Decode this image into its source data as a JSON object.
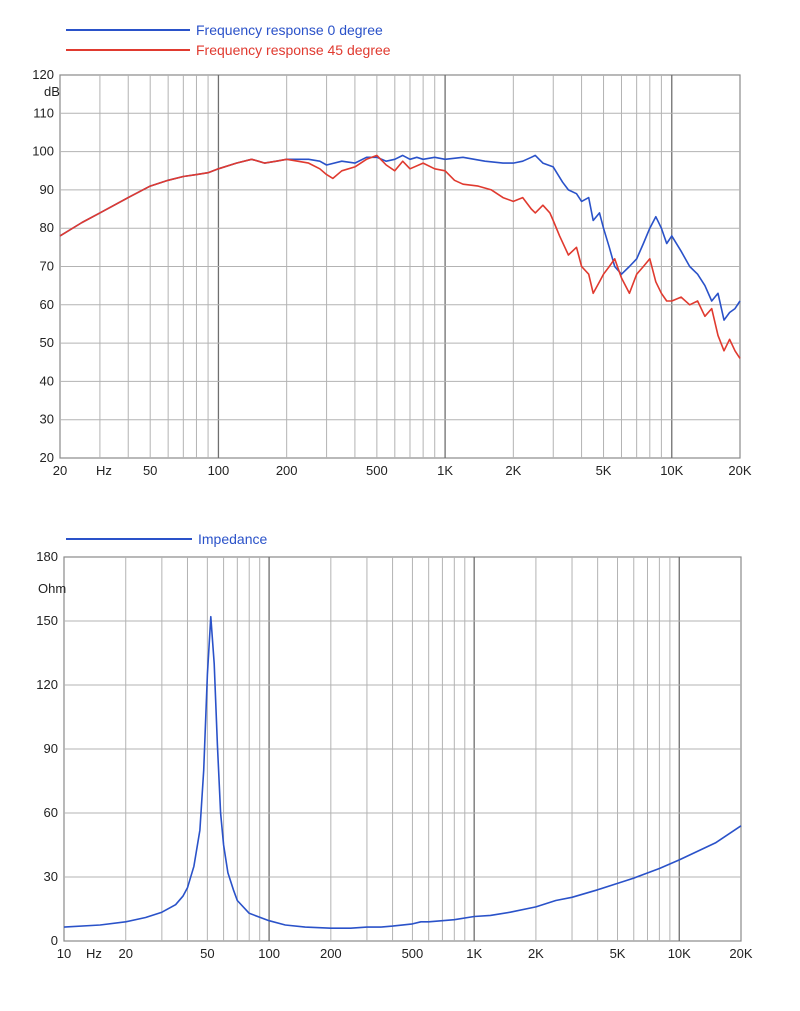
{
  "chart_data": [
    {
      "type": "line",
      "x_scale": "log",
      "xlim": [
        20,
        20000
      ],
      "ylim": [
        20,
        120
      ],
      "ylabel": "dB",
      "xlabel": "Hz",
      "grid": true,
      "legend_position": "top-left",
      "y_ticks": [
        20,
        30,
        40,
        50,
        60,
        70,
        80,
        90,
        100,
        110,
        120
      ],
      "x_tick_labels": [
        {
          "value": 20,
          "label": "20"
        },
        {
          "value": 50,
          "label": "50"
        },
        {
          "value": 100,
          "label": "100"
        },
        {
          "value": 200,
          "label": "200"
        },
        {
          "value": 500,
          "label": "500"
        },
        {
          "value": 1000,
          "label": "1K"
        },
        {
          "value": 2000,
          "label": "2K"
        },
        {
          "value": 5000,
          "label": "5K"
        },
        {
          "value": 10000,
          "label": "10K"
        },
        {
          "value": 20000,
          "label": "20K"
        }
      ],
      "series": [
        {
          "name": "Frequency response 0 degree",
          "color": "#2a52c9",
          "x": [
            20,
            25,
            30,
            40,
            50,
            60,
            70,
            80,
            90,
            100,
            120,
            140,
            150,
            160,
            180,
            200,
            250,
            280,
            300,
            350,
            400,
            450,
            500,
            550,
            600,
            650,
            700,
            750,
            800,
            900,
            1000,
            1200,
            1500,
            1800,
            2000,
            2200,
            2400,
            2500,
            2700,
            3000,
            3300,
            3500,
            3800,
            4000,
            4300,
            4500,
            4800,
            5000,
            5300,
            5600,
            6000,
            6500,
            7000,
            7500,
            8000,
            8500,
            9000,
            9500,
            10000,
            11000,
            12000,
            13000,
            14000,
            15000,
            16000,
            17000,
            18000,
            19000,
            20000
          ],
          "values": [
            78,
            81.5,
            84,
            88,
            91,
            92.5,
            93.5,
            94,
            94.5,
            95.5,
            97,
            98,
            97.5,
            97,
            97.5,
            98,
            98,
            97.5,
            96.5,
            97.5,
            97,
            98.5,
            98.5,
            97.5,
            98,
            99,
            98,
            98.5,
            98,
            98.5,
            98,
            98.5,
            97.5,
            97,
            97,
            97.5,
            98.5,
            99,
            97,
            96,
            92,
            90,
            89,
            87,
            88,
            82,
            84,
            80,
            75,
            70,
            68,
            70,
            72,
            76,
            80,
            83,
            80,
            76,
            78,
            74,
            70,
            68,
            65,
            61,
            63,
            56,
            58,
            59,
            61
          ]
        },
        {
          "name": "Frequency response 45 degree",
          "color": "#e03a2f",
          "x": [
            20,
            25,
            30,
            40,
            50,
            60,
            70,
            80,
            90,
            100,
            120,
            140,
            150,
            160,
            180,
            200,
            250,
            280,
            300,
            320,
            350,
            400,
            450,
            500,
            550,
            600,
            650,
            700,
            800,
            900,
            1000,
            1100,
            1200,
            1400,
            1600,
            1800,
            2000,
            2200,
            2400,
            2500,
            2700,
            2900,
            3000,
            3200,
            3500,
            3800,
            4000,
            4300,
            4500,
            4800,
            5000,
            5300,
            5600,
            6000,
            6500,
            7000,
            7500,
            8000,
            8500,
            9000,
            9500,
            10000,
            11000,
            12000,
            13000,
            14000,
            15000,
            16000,
            17000,
            18000,
            19000,
            20000
          ],
          "values": [
            78,
            81.5,
            84,
            88,
            91,
            92.5,
            93.5,
            94,
            94.5,
            95.5,
            97,
            98,
            97.5,
            97,
            97.5,
            98,
            97,
            95.5,
            94,
            93,
            95,
            96,
            98,
            99,
            96.5,
            95,
            97.5,
            95.5,
            97,
            95.5,
            95,
            92.5,
            91.5,
            91,
            90,
            88,
            87,
            88,
            85,
            84,
            86,
            84,
            82,
            78,
            73,
            75,
            70,
            68,
            63,
            66,
            68,
            70,
            72,
            67,
            63,
            68,
            70,
            72,
            66,
            63,
            61,
            61,
            62,
            60,
            61,
            57,
            59,
            52,
            48,
            51,
            48,
            46
          ]
        }
      ]
    },
    {
      "type": "line",
      "x_scale": "log",
      "xlim": [
        10,
        20000
      ],
      "ylim": [
        0,
        180
      ],
      "ylabel": "Ohm",
      "xlabel": "Hz",
      "grid": true,
      "legend_position": "top-left",
      "y_ticks": [
        0,
        30,
        60,
        90,
        120,
        150,
        180
      ],
      "x_tick_labels": [
        {
          "value": 10,
          "label": "10"
        },
        {
          "value": 20,
          "label": "20"
        },
        {
          "value": 50,
          "label": "50"
        },
        {
          "value": 100,
          "label": "100"
        },
        {
          "value": 200,
          "label": "200"
        },
        {
          "value": 500,
          "label": "500"
        },
        {
          "value": 1000,
          "label": "1K"
        },
        {
          "value": 2000,
          "label": "2K"
        },
        {
          "value": 5000,
          "label": "5K"
        },
        {
          "value": 10000,
          "label": "10K"
        },
        {
          "value": 20000,
          "label": "20K"
        }
      ],
      "series": [
        {
          "name": "Impedance",
          "color": "#2a52c9",
          "x": [
            10,
            15,
            20,
            25,
            30,
            35,
            38,
            40,
            43,
            46,
            48,
            50,
            52,
            54,
            56,
            58,
            60,
            63,
            67,
            70,
            80,
            100,
            120,
            150,
            200,
            250,
            300,
            350,
            400,
            500,
            550,
            600,
            700,
            800,
            1000,
            1200,
            1500,
            2000,
            2500,
            3000,
            4000,
            5000,
            6000,
            8000,
            10000,
            15000,
            20000
          ],
          "values": [
            6.5,
            7.5,
            9,
            11,
            13.5,
            17,
            21,
            25,
            35,
            52,
            80,
            125,
            152,
            130,
            92,
            60,
            45,
            32,
            24,
            19,
            13,
            9.5,
            7.5,
            6.5,
            6,
            6,
            6.5,
            6.5,
            7,
            8,
            9,
            9,
            9.5,
            10,
            11.5,
            12,
            13.5,
            16,
            19,
            20.5,
            24,
            27,
            29.5,
            34,
            38,
            46,
            54
          ]
        }
      ]
    }
  ]
}
